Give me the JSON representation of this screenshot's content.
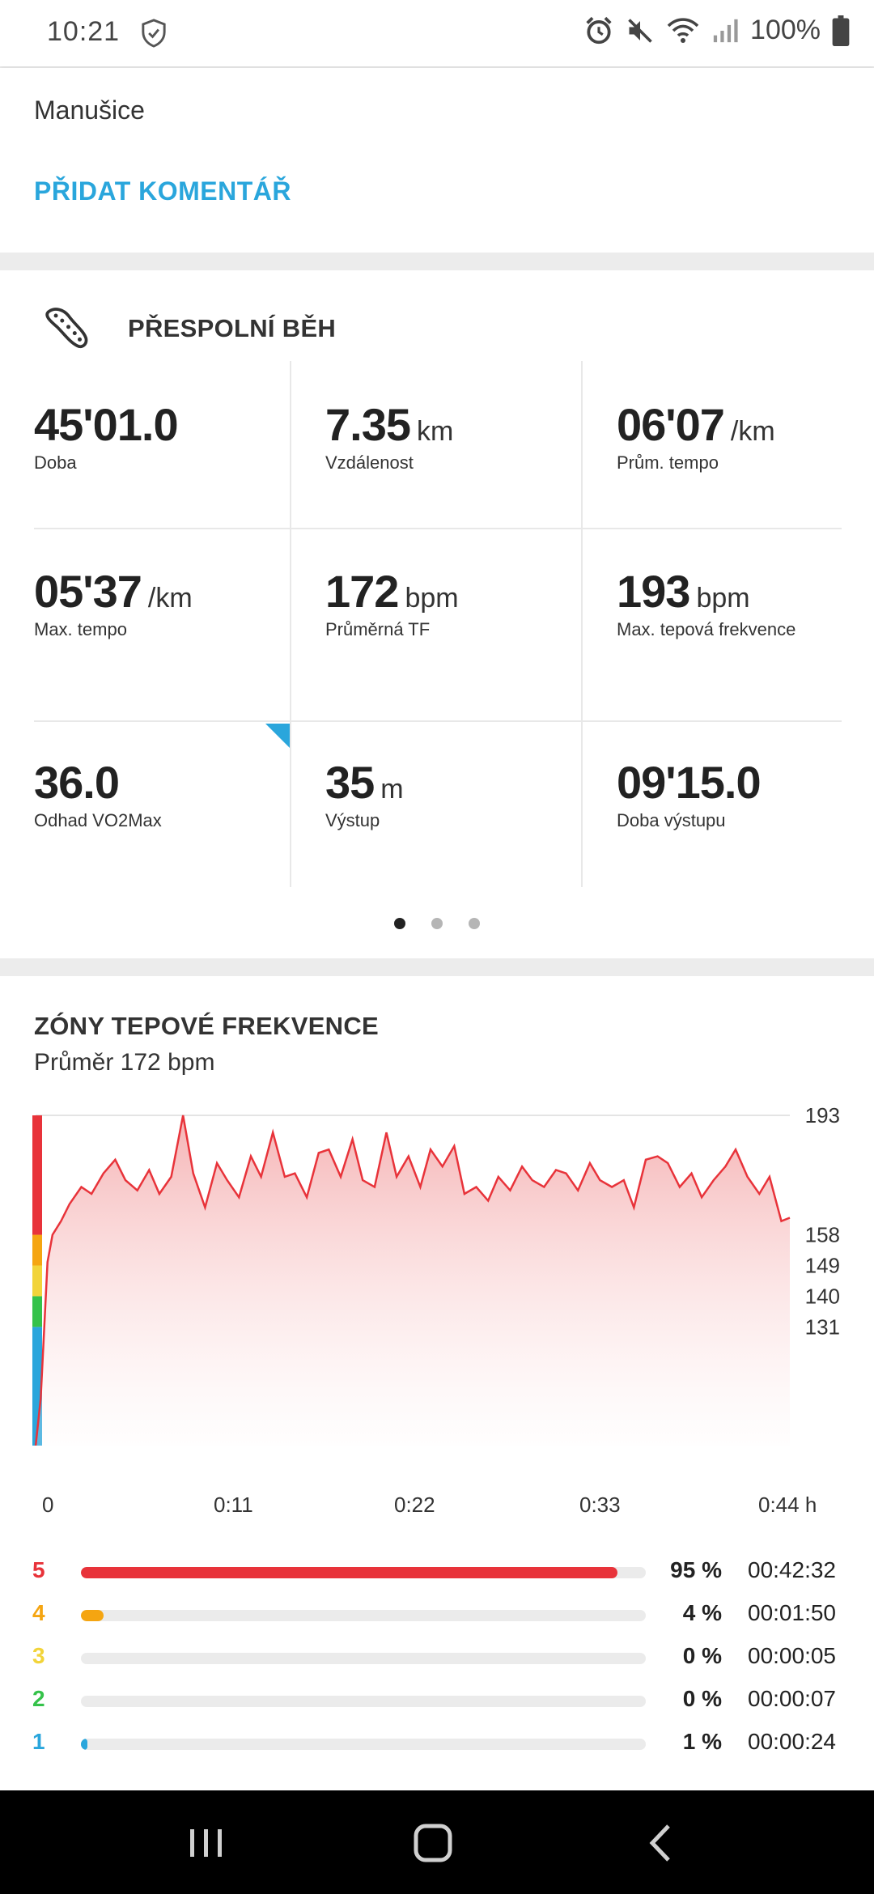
{
  "status_bar": {
    "time": "10:21",
    "battery": "100%"
  },
  "location_card": {
    "location": "Manušice",
    "add_comment": "PŘIDAT KOMENTÁŘ"
  },
  "activity": {
    "sport": "PŘESPOLNÍ BĚH",
    "stats": [
      {
        "value": "45'01.0",
        "unit": "",
        "label": "Doba"
      },
      {
        "value": "7.35",
        "unit": "km",
        "label": "Vzdálenost"
      },
      {
        "value": "06'07",
        "unit": "/km",
        "label": "Prům. tempo"
      },
      {
        "value": "05'37",
        "unit": "/km",
        "label": "Max. tempo"
      },
      {
        "value": "172",
        "unit": "bpm",
        "label": "Průměrná TF"
      },
      {
        "value": "193",
        "unit": "bpm",
        "label": "Max. tepová frekvence"
      },
      {
        "value": "36.0",
        "unit": "",
        "label": "Odhad VO2Max"
      },
      {
        "value": "35",
        "unit": "m",
        "label": "Výstup"
      },
      {
        "value": "09'15.0",
        "unit": "",
        "label": "Doba výstupu"
      }
    ],
    "page_count": 3,
    "active_page": 0
  },
  "hr_zones": {
    "title": "ZÓNY TEPOVÉ FREKVENCE",
    "subtitle": "Průměr 172 bpm",
    "zones": [
      {
        "zone": "5",
        "percent_value": 95,
        "percent": "95 %",
        "time": "00:42:32",
        "color": "#e8333a"
      },
      {
        "zone": "4",
        "percent_value": 4,
        "percent": "4 %",
        "time": "00:01:50",
        "color": "#f5a511"
      },
      {
        "zone": "3",
        "percent_value": 0,
        "percent": "0 %",
        "time": "00:00:05",
        "color": "#f2d43a"
      },
      {
        "zone": "2",
        "percent_value": 0,
        "percent": "0 %",
        "time": "00:00:07",
        "color": "#35c24a"
      },
      {
        "zone": "1",
        "percent_value": 1,
        "percent": "1 %",
        "time": "00:00:24",
        "color": "#2aa6dc"
      }
    ]
  },
  "chart_data": {
    "type": "area",
    "title": "",
    "xlabel": "",
    "ylabel": "",
    "x_ticks": [
      "0",
      "0:11",
      "0:22",
      "0:33",
      "0:44 h"
    ],
    "y_ticks": [
      193,
      158,
      149,
      140,
      131,
      91
    ],
    "xlim": [
      0,
      44.5
    ],
    "ylim": [
      91,
      193
    ],
    "zone_bands": [
      {
        "zone": "1",
        "from": 91,
        "to": 131,
        "color": "#2aa6dc"
      },
      {
        "zone": "2",
        "from": 131,
        "to": 140,
        "color": "#35c24a"
      },
      {
        "zone": "3",
        "from": 140,
        "to": 149,
        "color": "#f2d43a"
      },
      {
        "zone": "4",
        "from": 149,
        "to": 158,
        "color": "#f5a511"
      },
      {
        "zone": "5",
        "from": 158,
        "to": 193,
        "color": "#e8333a"
      }
    ],
    "series": [
      {
        "line_color": "#e8333a",
        "x": [
          0,
          0.3,
          0.7,
          1.0,
          1.5,
          2.0,
          2.7,
          3.3,
          4.0,
          4.7,
          5.3,
          6.0,
          6.7,
          7.3,
          8.0,
          8.7,
          9.3,
          10.0,
          10.7,
          11.3,
          12.0,
          12.7,
          13.3,
          14.0,
          14.7,
          15.3,
          16.0,
          16.7,
          17.3,
          18.0,
          18.7,
          19.3,
          20.0,
          20.7,
          21.3,
          22.0,
          22.7,
          23.3,
          24.0,
          24.7,
          25.3,
          26.0,
          26.7,
          27.3,
          28.0,
          28.7,
          29.3,
          30.0,
          30.7,
          31.3,
          32.0,
          32.7,
          33.3,
          34.0,
          34.7,
          35.3,
          36.0,
          36.7,
          37.3,
          38.0,
          38.7,
          39.3,
          40.0,
          40.7,
          41.3,
          42.0,
          42.7,
          43.3,
          44.0,
          44.5
        ],
        "y": [
          96,
          110,
          150,
          158,
          162,
          167,
          172,
          170,
          176,
          180,
          174,
          171,
          177,
          170,
          175,
          193,
          176,
          166,
          179,
          174,
          169,
          181,
          175,
          188,
          175,
          176,
          169,
          182,
          183,
          175,
          186,
          174,
          172,
          188,
          175,
          181,
          172,
          183,
          178,
          184,
          170,
          172,
          168,
          175,
          171,
          178,
          174,
          172,
          177,
          176,
          171,
          179,
          174,
          172,
          174,
          166,
          180,
          181,
          179,
          172,
          176,
          169,
          174,
          178,
          183,
          175,
          170,
          175,
          162,
          163
        ]
      }
    ]
  }
}
